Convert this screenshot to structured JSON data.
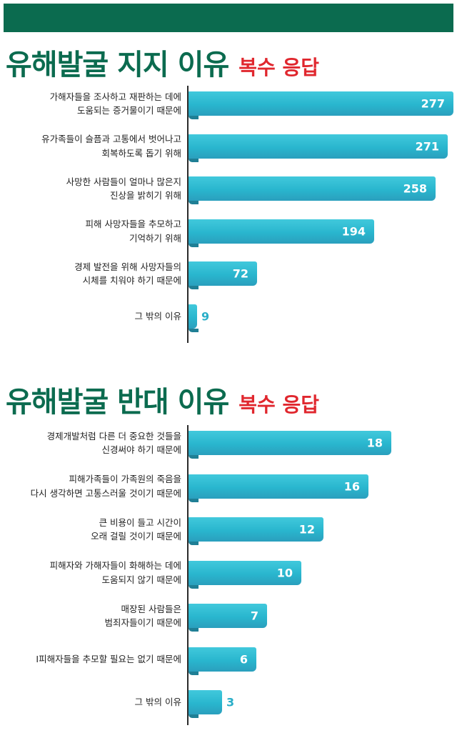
{
  "colors": {
    "band": "#0b6b4f",
    "title": "#0b6b4f",
    "accent": "#e0272e",
    "bar": "#2ab5cd"
  },
  "section1": {
    "title": "유해발굴 지지 이유",
    "subtitle": "복수 응답"
  },
  "section2": {
    "title": "유해발굴 반대 이유",
    "subtitle": "복수 응답"
  },
  "chart_data": [
    {
      "type": "bar",
      "orientation": "horizontal",
      "title": "유해발굴 지지 이유",
      "subtitle": "복수 응답",
      "categories": [
        "가해자들을 조사하고 재판하는 데에\n도움되는 증거물이기 때문에",
        "유가족들이 슬픔과 고통에서 벗어나고\n회복하도록 돕기 위해",
        "사망한 사람들이 얼마나 많은지\n진상을 밝히기 위해",
        "피해 사망자들을 추모하고\n기억하기 위해",
        "경제 발전을 위해 사망자들의\n시체를 치워야 하기 때문에",
        "그 밖의 이유"
      ],
      "values": [
        277,
        271,
        258,
        194,
        72,
        9
      ],
      "xlim": [
        0,
        277
      ]
    },
    {
      "type": "bar",
      "orientation": "horizontal",
      "title": "유해발굴 반대 이유",
      "subtitle": "복수 응답",
      "categories": [
        "경제개발처럼 다른 더 중요한 것들을\n신경써야 하기 때문에",
        "피해가족들이 가족원의 죽음을\n다시 생각하면 고통스러울 것이기 때문에",
        "큰 비용이 들고 시간이\n오래 걸릴 것이기 때문에",
        "피해자와 가해자들이 화해하는 데에\n도움되지 않기 때문에",
        "매장된 사람들은\n범죄자들이기 때문에",
        "I피해자들을 추모할 필요는 없기 때문에",
        "그 밖의 이유"
      ],
      "values": [
        18,
        16,
        12,
        10,
        7,
        6,
        3
      ],
      "xlim": [
        0,
        18
      ]
    }
  ]
}
